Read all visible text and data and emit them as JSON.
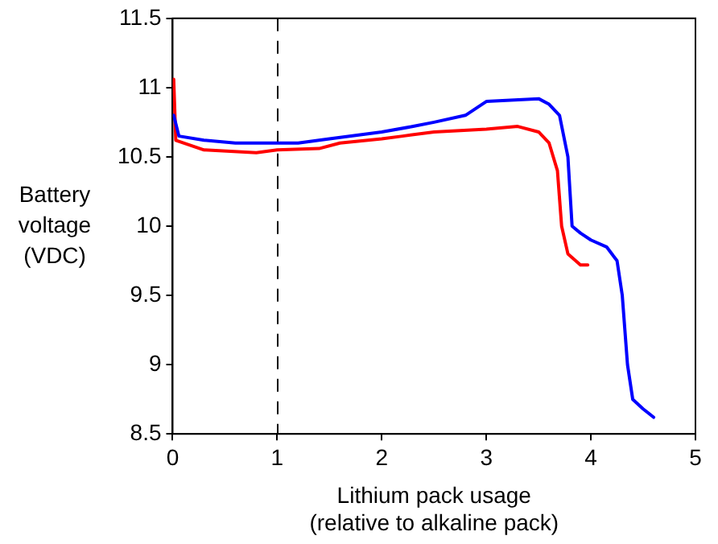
{
  "chart_data": {
    "type": "line",
    "xlabel": "Lithium pack usage\n(relative to alkaline pack)",
    "ylabel": "Battery\nvoltage\n(VDC)",
    "xlim": [
      0,
      5
    ],
    "xticks": [
      0,
      1,
      2,
      3,
      4,
      5
    ],
    "ylim": [
      8.5,
      11.5
    ],
    "yticks": [
      8.5,
      9,
      9.5,
      10,
      10.5,
      11,
      11.5
    ],
    "grid": false,
    "marker": "none",
    "line_style": "solid",
    "ref_lines": [
      {
        "axis": "x",
        "value": 1,
        "color": "#000000",
        "line_style": "dashed"
      }
    ],
    "series": [
      {
        "color": "#0000ff",
        "x": [
          0.01,
          0.06,
          0.3,
          0.6,
          1.0,
          1.2,
          1.5,
          2.0,
          2.3,
          2.5,
          2.8,
          3.0,
          3.5,
          3.6,
          3.7,
          3.78,
          3.82,
          3.9,
          4.0,
          4.15,
          4.25,
          4.3,
          4.35,
          4.4,
          4.5,
          4.6
        ],
        "values": [
          10.8,
          10.65,
          10.62,
          10.6,
          10.6,
          10.6,
          10.63,
          10.68,
          10.72,
          10.75,
          10.8,
          10.9,
          10.92,
          10.88,
          10.8,
          10.5,
          10.0,
          9.95,
          9.9,
          9.85,
          9.75,
          9.5,
          9.0,
          8.75,
          8.68,
          8.62
        ]
      },
      {
        "color": "#ff0000",
        "x": [
          0.01,
          0.03,
          0.3,
          0.8,
          1.0,
          1.4,
          1.6,
          2.0,
          2.2,
          2.5,
          3.0,
          3.3,
          3.5,
          3.6,
          3.68,
          3.72,
          3.78,
          3.9,
          3.97
        ],
        "values": [
          11.06,
          10.62,
          10.55,
          10.53,
          10.55,
          10.56,
          10.6,
          10.63,
          10.65,
          10.68,
          10.7,
          10.72,
          10.68,
          10.6,
          10.4,
          10.0,
          9.8,
          9.72,
          9.72
        ]
      }
    ]
  }
}
